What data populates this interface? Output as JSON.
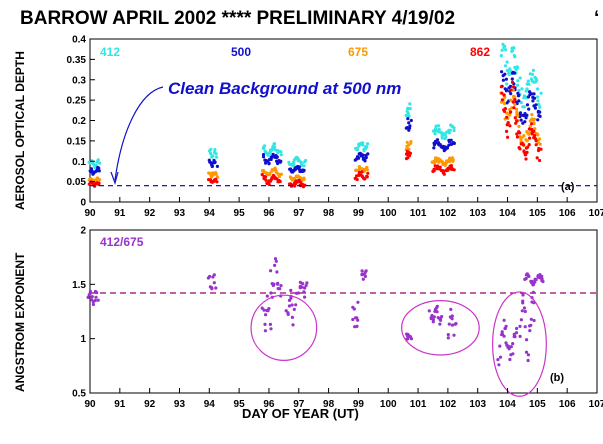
{
  "title": "BARROW APRIL 2002 ****   PRELIMINARY 4/19/02",
  "title_suffix": "‘",
  "xlabel": "DAY OF YEAR  (UT)",
  "x_ticks": [
    "90",
    "91",
    "92",
    "93",
    "94",
    "95",
    "96",
    "97",
    "98",
    "99",
    "100",
    "101",
    "102",
    "103",
    "104",
    "105",
    "106",
    "107"
  ],
  "colors": {
    "c412": "#33e6e6",
    "c500": "#1010cc",
    "c675": "#ff9900",
    "c862": "#ff0000",
    "angstrom": "#9933cc",
    "ellipse": "#cc33cc",
    "refline": "#000099",
    "angref": "#990066"
  },
  "chart_data": [
    {
      "type": "scatter",
      "panel_label": "(a)",
      "ylabel": "AEROSOL OPTICAL DEPTH",
      "ylim": [
        0,
        0.4
      ],
      "xlim": [
        90,
        107
      ],
      "y_ticks": [
        "0",
        "0.05",
        "0.1",
        "0.15",
        "0.2",
        "0.25",
        "0.3",
        "0.35",
        "0.4"
      ],
      "legend": [
        "412",
        "500",
        "675",
        "862"
      ],
      "annotation": "Clean Background at 500 nm",
      "reference_line": 0.04,
      "series": [
        {
          "name": "412",
          "color": "#33e6e6",
          "segments": [
            {
              "x0": 90.0,
              "x1": 90.3,
              "y0": 0.075,
              "y1": 0.105
            },
            {
              "x0": 94.0,
              "x1": 94.25,
              "y0": 0.1,
              "y1": 0.13
            },
            {
              "x0": 95.8,
              "x1": 96.4,
              "y0": 0.1,
              "y1": 0.145
            },
            {
              "x0": 96.7,
              "x1": 97.2,
              "y0": 0.08,
              "y1": 0.11
            },
            {
              "x0": 98.9,
              "x1": 99.3,
              "y0": 0.115,
              "y1": 0.15
            },
            {
              "x0": 100.6,
              "x1": 100.75,
              "y0": 0.19,
              "y1": 0.245
            },
            {
              "x0": 101.5,
              "x1": 102.2,
              "y0": 0.14,
              "y1": 0.19
            },
            {
              "x0": 103.8,
              "x1": 104.3,
              "y0": 0.24,
              "y1": 0.4
            },
            {
              "x0": 104.3,
              "x1": 105.1,
              "y0": 0.19,
              "y1": 0.34
            }
          ]
        },
        {
          "name": "500",
          "color": "#1010cc",
          "segments": [
            {
              "x0": 90.0,
              "x1": 90.3,
              "y0": 0.06,
              "y1": 0.085
            },
            {
              "x0": 94.0,
              "x1": 94.25,
              "y0": 0.08,
              "y1": 0.105
            },
            {
              "x0": 95.8,
              "x1": 96.4,
              "y0": 0.08,
              "y1": 0.12
            },
            {
              "x0": 96.7,
              "x1": 97.2,
              "y0": 0.065,
              "y1": 0.09
            },
            {
              "x0": 98.9,
              "x1": 99.3,
              "y0": 0.09,
              "y1": 0.125
            },
            {
              "x0": 100.6,
              "x1": 100.75,
              "y0": 0.16,
              "y1": 0.205
            },
            {
              "x0": 101.5,
              "x1": 102.2,
              "y0": 0.11,
              "y1": 0.155
            },
            {
              "x0": 103.8,
              "x1": 104.3,
              "y0": 0.19,
              "y1": 0.34
            },
            {
              "x0": 104.3,
              "x1": 105.1,
              "y0": 0.15,
              "y1": 0.28
            }
          ]
        },
        {
          "name": "675",
          "color": "#ff9900",
          "segments": [
            {
              "x0": 90.0,
              "x1": 90.3,
              "y0": 0.045,
              "y1": 0.06
            },
            {
              "x0": 94.0,
              "x1": 94.25,
              "y0": 0.055,
              "y1": 0.075
            },
            {
              "x0": 95.8,
              "x1": 96.4,
              "y0": 0.055,
              "y1": 0.085
            },
            {
              "x0": 96.7,
              "x1": 97.2,
              "y0": 0.05,
              "y1": 0.065
            },
            {
              "x0": 98.9,
              "x1": 99.3,
              "y0": 0.065,
              "y1": 0.09
            },
            {
              "x0": 100.6,
              "x1": 100.75,
              "y0": 0.12,
              "y1": 0.15
            },
            {
              "x0": 101.5,
              "x1": 102.2,
              "y0": 0.08,
              "y1": 0.11
            },
            {
              "x0": 103.8,
              "x1": 104.3,
              "y0": 0.14,
              "y1": 0.28
            },
            {
              "x0": 104.3,
              "x1": 105.1,
              "y0": 0.1,
              "y1": 0.22
            }
          ]
        },
        {
          "name": "862",
          "color": "#ff0000",
          "segments": [
            {
              "x0": 90.0,
              "x1": 90.3,
              "y0": 0.035,
              "y1": 0.05
            },
            {
              "x0": 94.0,
              "x1": 94.25,
              "y0": 0.035,
              "y1": 0.06
            },
            {
              "x0": 95.8,
              "x1": 96.4,
              "y0": 0.03,
              "y1": 0.07
            },
            {
              "x0": 96.7,
              "x1": 97.2,
              "y0": 0.03,
              "y1": 0.055
            },
            {
              "x0": 98.9,
              "x1": 99.3,
              "y0": 0.045,
              "y1": 0.075
            },
            {
              "x0": 100.6,
              "x1": 100.75,
              "y0": 0.1,
              "y1": 0.125
            },
            {
              "x0": 101.5,
              "x1": 102.2,
              "y0": 0.06,
              "y1": 0.09
            },
            {
              "x0": 103.8,
              "x1": 104.3,
              "y0": 0.1,
              "y1": 0.3
            },
            {
              "x0": 104.3,
              "x1": 105.1,
              "y0": 0.06,
              "y1": 0.2
            }
          ]
        }
      ]
    },
    {
      "type": "scatter",
      "panel_label": "(b)",
      "ylabel": "ANGSTROM EXPONENT",
      "ylim": [
        0.5,
        2.0
      ],
      "xlim": [
        90,
        107
      ],
      "y_ticks": [
        "0.5",
        "1",
        "1.5",
        "2"
      ],
      "legend": [
        "412/675"
      ],
      "reference_line": 1.42,
      "series": [
        {
          "name": "412/675",
          "color": "#9933cc",
          "segments": [
            {
              "x0": 89.95,
              "x1": 90.25,
              "y0": 1.22,
              "y1": 1.45
            },
            {
              "x0": 94.0,
              "x1": 94.2,
              "y0": 1.38,
              "y1": 1.6
            },
            {
              "x0": 95.8,
              "x1": 96.05,
              "y0": 0.93,
              "y1": 1.4
            },
            {
              "x0": 96.05,
              "x1": 96.4,
              "y0": 1.15,
              "y1": 1.78
            },
            {
              "x0": 96.6,
              "x1": 96.9,
              "y0": 0.95,
              "y1": 1.5
            },
            {
              "x0": 97.0,
              "x1": 97.25,
              "y0": 1.3,
              "y1": 1.55
            },
            {
              "x0": 98.8,
              "x1": 99.0,
              "y0": 0.95,
              "y1": 1.35
            },
            {
              "x0": 99.1,
              "x1": 99.25,
              "y0": 1.5,
              "y1": 1.65
            },
            {
              "x0": 100.6,
              "x1": 100.75,
              "y0": 0.95,
              "y1": 1.05
            },
            {
              "x0": 101.4,
              "x1": 101.8,
              "y0": 1.05,
              "y1": 1.32
            },
            {
              "x0": 102.0,
              "x1": 102.25,
              "y0": 0.88,
              "y1": 1.3
            },
            {
              "x0": 103.7,
              "x1": 104.3,
              "y0": 0.6,
              "y1": 1.2
            },
            {
              "x0": 104.4,
              "x1": 104.9,
              "y0": 0.55,
              "y1": 1.45
            },
            {
              "x0": 104.6,
              "x1": 105.2,
              "y0": 1.45,
              "y1": 1.6
            }
          ]
        }
      ],
      "highlighted_regions": [
        {
          "cx": 96.5,
          "cy": 1.1,
          "rx": 1.1,
          "ry": 0.3
        },
        {
          "cx": 101.75,
          "cy": 1.1,
          "rx": 1.3,
          "ry": 0.25
        },
        {
          "cx": 104.4,
          "cy": 0.95,
          "rx": 0.9,
          "ry": 0.48
        }
      ]
    }
  ]
}
